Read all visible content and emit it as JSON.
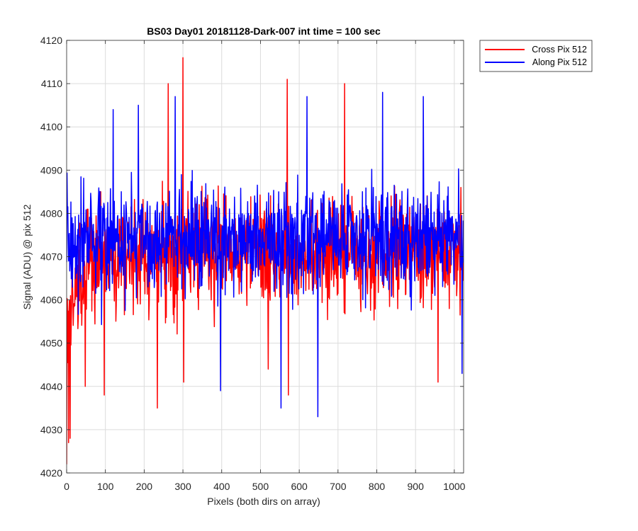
{
  "chart_data": {
    "type": "line",
    "title": "BS03 Day01 20181128-Dark-007 int time = 100 sec",
    "xlabel": "Pixels (both dirs on array)",
    "ylabel": "Signal (ADU) @ pix 512",
    "xlim": [
      0,
      1024
    ],
    "ylim": [
      4020,
      4120
    ],
    "xticks": [
      0,
      100,
      200,
      300,
      400,
      500,
      600,
      700,
      800,
      900,
      1000
    ],
    "yticks": [
      4020,
      4030,
      4040,
      4050,
      4060,
      4070,
      4080,
      4090,
      4100,
      4110,
      4120
    ],
    "grid": true,
    "legend_position": "outside-top-right",
    "note": "Each series has one point per pixel index (0-1023). Visible extremes were read from the plot; intermediate noisy values are approximated.",
    "series": [
      {
        "name": "Cross Pix 512",
        "color": "#ff0000",
        "x_start": 0,
        "x_step": 1,
        "n_points": 1024,
        "mean": 4071,
        "spread": 8,
        "startup_ramp": true,
        "notable_points": [
          {
            "x": 0,
            "y": 4022
          },
          {
            "x": 5,
            "y": 4027
          },
          {
            "x": 9,
            "y": 4028
          },
          {
            "x": 48,
            "y": 4040
          },
          {
            "x": 97,
            "y": 4038
          },
          {
            "x": 234,
            "y": 4035
          },
          {
            "x": 262,
            "y": 4110
          },
          {
            "x": 300,
            "y": 4116
          },
          {
            "x": 302,
            "y": 4041
          },
          {
            "x": 520,
            "y": 4044
          },
          {
            "x": 569,
            "y": 4111
          },
          {
            "x": 572,
            "y": 4038
          },
          {
            "x": 717,
            "y": 4110
          },
          {
            "x": 958,
            "y": 4041
          },
          {
            "x": 1017,
            "y": 4086
          }
        ]
      },
      {
        "name": "Along Pix 512",
        "color": "#0000ff",
        "x_start": 0,
        "x_step": 1,
        "n_points": 1024,
        "mean": 4074,
        "spread": 8,
        "startup_ramp": false,
        "notable_points": [
          {
            "x": 5,
            "y": 4069
          },
          {
            "x": 120,
            "y": 4104
          },
          {
            "x": 185,
            "y": 4105
          },
          {
            "x": 280,
            "y": 4107
          },
          {
            "x": 397,
            "y": 4039
          },
          {
            "x": 553,
            "y": 4035
          },
          {
            "x": 620,
            "y": 4107
          },
          {
            "x": 648,
            "y": 4033
          },
          {
            "x": 815,
            "y": 4108
          },
          {
            "x": 920,
            "y": 4107
          },
          {
            "x": 1020,
            "y": 4043
          }
        ]
      }
    ]
  }
}
